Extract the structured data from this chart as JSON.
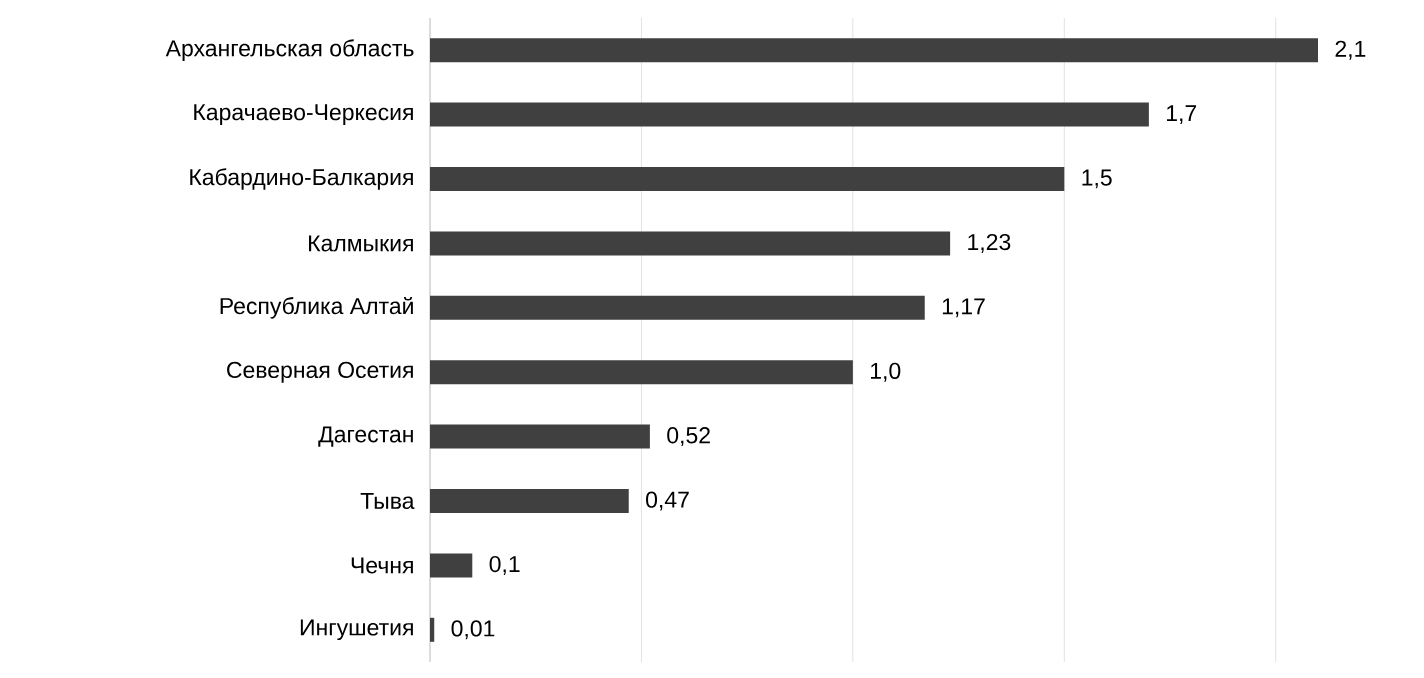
{
  "chart_data": {
    "type": "bar",
    "orientation": "horizontal",
    "categories": [
      "Архангельская область",
      "Карачаево-Черкесия",
      "Кабардино-Балкария",
      "Калмыкия",
      "Республика Алтай",
      "Северная Осетия",
      "Дагестан",
      "Тыва",
      "Чечня",
      "Ингушетия"
    ],
    "values": [
      2.1,
      1.7,
      1.5,
      1.23,
      1.17,
      1.0,
      0.52,
      0.47,
      0.1,
      0.01
    ],
    "value_labels": [
      "2,1",
      "1,7",
      "1,5",
      "1,23",
      "1,17",
      "1,0",
      "0,52",
      "0,47",
      "0,1",
      "0,01"
    ],
    "color": "#404040",
    "xticks": [
      {
        "value": 0.5,
        "label": null
      },
      {
        "value": 1,
        "label": null
      },
      {
        "value": 1.5,
        "label": null
      },
      {
        "value": 2,
        "label": null
      }
    ],
    "grid": "x",
    "tick_labels": "y"
  }
}
